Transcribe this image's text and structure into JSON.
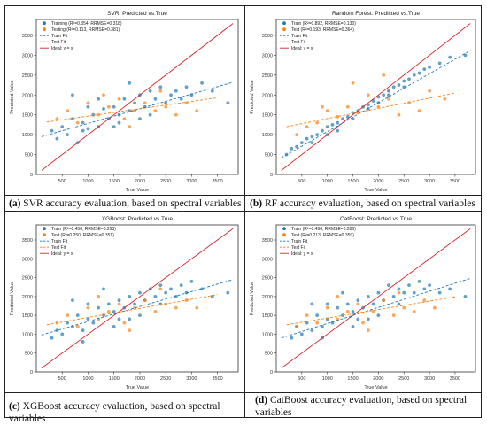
{
  "chart_data": [
    {
      "type": "scatter",
      "title": "SVR: Predicted vs.True",
      "xlabel": "True Value",
      "ylabel": "Predicted Value",
      "xlim": [
        0,
        3900
      ],
      "ylim": [
        0,
        3900
      ],
      "xticks": [
        "500",
        "1000",
        "1500",
        "2000",
        "2500",
        "3000",
        "3500"
      ],
      "yticks": [
        "0",
        "500",
        "1000",
        "1500",
        "2000",
        "2500",
        "3000",
        "3500"
      ],
      "legend_position": "top-left",
      "legend": [
        "Training (R²=0.354, RRMSE=0.318)",
        "Testing (R²=0.113, RRMSE=0.381)",
        "Train Fit",
        "Test Fit",
        "Ideal: y = x"
      ],
      "train_fit": [
        [
          100,
          950
        ],
        [
          3800,
          2320
        ]
      ],
      "test_fit": [
        [
          200,
          1320
        ],
        [
          3500,
          1930
        ]
      ],
      "ideal": [
        [
          100,
          100
        ],
        [
          3800,
          3800
        ]
      ],
      "train_points": [
        [
          300,
          1100
        ],
        [
          400,
          900
        ],
        [
          500,
          1200
        ],
        [
          600,
          1000
        ],
        [
          700,
          1400
        ],
        [
          800,
          800
        ],
        [
          900,
          1300
        ],
        [
          1000,
          1150
        ],
        [
          1100,
          1500
        ],
        [
          1200,
          1200
        ],
        [
          1300,
          1650
        ],
        [
          1400,
          1400
        ],
        [
          1500,
          1700
        ],
        [
          1600,
          1500
        ],
        [
          1700,
          1900
        ],
        [
          1800,
          1600
        ],
        [
          1900,
          1800
        ],
        [
          2000,
          2000
        ],
        [
          2100,
          1700
        ],
        [
          2200,
          2100
        ],
        [
          2300,
          1900
        ],
        [
          2400,
          2200
        ],
        [
          2500,
          1800
        ],
        [
          2600,
          2000
        ],
        [
          2700,
          2100
        ],
        [
          2800,
          1900
        ],
        [
          2900,
          2200
        ],
        [
          3000,
          2000
        ],
        [
          3200,
          2300
        ],
        [
          3400,
          2100
        ],
        [
          3700,
          1800
        ],
        [
          1000,
          1700
        ],
        [
          1500,
          1200
        ],
        [
          2000,
          1400
        ],
        [
          700,
          2000
        ],
        [
          1200,
          1900
        ],
        [
          1800,
          2300
        ],
        [
          2200,
          1500
        ],
        [
          900,
          1100
        ],
        [
          1600,
          1300
        ]
      ],
      "test_points": [
        [
          400,
          1400
        ],
        [
          600,
          1600
        ],
        [
          800,
          1300
        ],
        [
          1000,
          1800
        ],
        [
          1200,
          1500
        ],
        [
          1400,
          1700
        ],
        [
          1600,
          1900
        ],
        [
          1700,
          1400
        ],
        [
          1900,
          1600
        ],
        [
          2100,
          1800
        ],
        [
          2300,
          1600
        ],
        [
          2500,
          1700
        ],
        [
          2700,
          1500
        ],
        [
          2900,
          1800
        ],
        [
          3100,
          1600
        ],
        [
          1300,
          2000
        ],
        [
          1800,
          1200
        ],
        [
          2400,
          2100
        ]
      ]
    },
    {
      "type": "scatter",
      "title": "Random Forest: Predicted vs.True",
      "xlabel": "True Value",
      "ylabel": "Predicted Value",
      "xlim": [
        0,
        3900
      ],
      "ylim": [
        0,
        3900
      ],
      "xticks": [
        "500",
        "1000",
        "1500",
        "2000",
        "2500",
        "3000",
        "3500"
      ],
      "yticks": [
        "0",
        "500",
        "1000",
        "1500",
        "2000",
        "2500",
        "3000",
        "3500"
      ],
      "legend_position": "top-left",
      "legend": [
        "Train (R²=0.892, RRMSE=0.130)",
        "Test (R²=0.193, RRMSE=0.364)",
        "Train Fit",
        "Test Fit",
        "Ideal: y = x"
      ],
      "train_fit": [
        [
          100,
          420
        ],
        [
          3800,
          3120
        ]
      ],
      "test_fit": [
        [
          200,
          1200
        ],
        [
          3500,
          2050
        ]
      ],
      "ideal": [
        [
          100,
          100
        ],
        [
          3800,
          3800
        ]
      ],
      "train_points": [
        [
          200,
          500
        ],
        [
          300,
          650
        ],
        [
          400,
          700
        ],
        [
          500,
          800
        ],
        [
          600,
          900
        ],
        [
          700,
          950
        ],
        [
          800,
          1000
        ],
        [
          900,
          1100
        ],
        [
          1000,
          1200
        ],
        [
          1100,
          1250
        ],
        [
          1200,
          1300
        ],
        [
          1300,
          1400
        ],
        [
          1400,
          1450
        ],
        [
          1500,
          1550
        ],
        [
          1600,
          1600
        ],
        [
          1700,
          1700
        ],
        [
          1800,
          1750
        ],
        [
          1900,
          1850
        ],
        [
          2000,
          1950
        ],
        [
          2100,
          2000
        ],
        [
          2200,
          2100
        ],
        [
          2300,
          2200
        ],
        [
          2400,
          2250
        ],
        [
          2500,
          2350
        ],
        [
          2600,
          2400
        ],
        [
          2700,
          2500
        ],
        [
          2800,
          2550
        ],
        [
          2900,
          2650
        ],
        [
          3000,
          2700
        ],
        [
          3200,
          2800
        ],
        [
          3400,
          2950
        ],
        [
          3700,
          3000
        ],
        [
          1000,
          1000
        ],
        [
          1500,
          1400
        ],
        [
          2000,
          1800
        ],
        [
          2500,
          2200
        ],
        [
          1200,
          1100
        ],
        [
          1800,
          1650
        ],
        [
          2200,
          2000
        ],
        [
          700,
          800
        ]
      ],
      "test_points": [
        [
          400,
          1000
        ],
        [
          600,
          1200
        ],
        [
          800,
          1300
        ],
        [
          1000,
          1600
        ],
        [
          1200,
          1450
        ],
        [
          1400,
          1700
        ],
        [
          1600,
          1550
        ],
        [
          1800,
          2000
        ],
        [
          2000,
          1700
        ],
        [
          2200,
          1900
        ],
        [
          2400,
          1500
        ],
        [
          2600,
          1800
        ],
        [
          2800,
          1600
        ],
        [
          3000,
          2100
        ],
        [
          3300,
          1900
        ],
        [
          1500,
          2300
        ],
        [
          2100,
          2500
        ],
        [
          900,
          1700
        ]
      ]
    },
    {
      "type": "scatter",
      "title": "XGBoost: Predicted vs.True",
      "xlabel": "True Value",
      "ylabel": "Predicted Value",
      "xlim": [
        0,
        3900
      ],
      "ylim": [
        0,
        3900
      ],
      "xticks": [
        "500",
        "1000",
        "1500",
        "2000",
        "2500",
        "3000",
        "3500"
      ],
      "yticks": [
        "0",
        "500",
        "1000",
        "1500",
        "2000",
        "2500",
        "3000",
        "3500"
      ],
      "legend_position": "top-left",
      "legend": [
        "Train (R²=0.450, RRMSE=0.293)",
        "Test (R²=0.250, RRMSE=0.351)",
        "Train Fit",
        "Test Fit",
        "Ideal: y = x"
      ],
      "train_fit": [
        [
          100,
          980
        ],
        [
          3800,
          2450
        ]
      ],
      "test_fit": [
        [
          200,
          1250
        ],
        [
          3500,
          2050
        ]
      ],
      "ideal": [
        [
          100,
          100
        ],
        [
          3800,
          3800
        ]
      ],
      "train_points": [
        [
          300,
          900
        ],
        [
          400,
          1100
        ],
        [
          500,
          1000
        ],
        [
          600,
          1300
        ],
        [
          700,
          1200
        ],
        [
          800,
          1500
        ],
        [
          900,
          1100
        ],
        [
          1000,
          1400
        ],
        [
          1100,
          1300
        ],
        [
          1200,
          1700
        ],
        [
          1300,
          1500
        ],
        [
          1400,
          1800
        ],
        [
          1500,
          1600
        ],
        [
          1600,
          1900
        ],
        [
          1700,
          1700
        ],
        [
          1800,
          2000
        ],
        [
          1900,
          1800
        ],
        [
          2000,
          2100
        ],
        [
          2100,
          1900
        ],
        [
          2200,
          2200
        ],
        [
          2300,
          2000
        ],
        [
          2400,
          2300
        ],
        [
          2500,
          2100
        ],
        [
          2600,
          2200
        ],
        [
          2700,
          2000
        ],
        [
          2800,
          2300
        ],
        [
          2900,
          2100
        ],
        [
          3000,
          2400
        ],
        [
          3200,
          2200
        ],
        [
          3400,
          2000
        ],
        [
          3700,
          2100
        ],
        [
          1000,
          1800
        ],
        [
          1500,
          1200
        ],
        [
          2000,
          1500
        ],
        [
          700,
          1900
        ],
        [
          1300,
          2200
        ],
        [
          1800,
          1400
        ],
        [
          2400,
          1800
        ],
        [
          900,
          800
        ],
        [
          1600,
          1400
        ]
      ],
      "test_points": [
        [
          400,
          1300
        ],
        [
          600,
          1500
        ],
        [
          800,
          1200
        ],
        [
          1000,
          1700
        ],
        [
          1200,
          1400
        ],
        [
          1400,
          1600
        ],
        [
          1600,
          1800
        ],
        [
          1700,
          1300
        ],
        [
          1900,
          1700
        ],
        [
          2100,
          1900
        ],
        [
          2300,
          1600
        ],
        [
          2500,
          1800
        ],
        [
          2700,
          1700
        ],
        [
          2900,
          1900
        ],
        [
          3100,
          1700
        ],
        [
          1200,
          2000
        ],
        [
          1800,
          1100
        ],
        [
          2400,
          2200
        ]
      ]
    },
    {
      "type": "scatter",
      "title": "CatBoost: Predicted vs.True",
      "xlabel": "True Value",
      "ylabel": "Predicted Value",
      "xlim": [
        0,
        3900
      ],
      "ylim": [
        0,
        3900
      ],
      "xticks": [
        "500",
        "1000",
        "1500",
        "2000",
        "2500",
        "3000",
        "3500"
      ],
      "yticks": [
        "0",
        "500",
        "1000",
        "1500",
        "2000",
        "2500",
        "3000",
        "3500"
      ],
      "legend_position": "top-left",
      "legend": [
        "Train (R²=0.496, RRMSE=0.280)",
        "Test (R²=0.213, RRMSE=0.359)",
        "Train Fit",
        "Test Fit",
        "Ideal: y = x"
      ],
      "train_fit": [
        [
          100,
          900
        ],
        [
          3800,
          2480
        ]
      ],
      "test_fit": [
        [
          200,
          1250
        ],
        [
          3500,
          1990
        ]
      ],
      "ideal": [
        [
          100,
          100
        ],
        [
          3800,
          3800
        ]
      ],
      "train_points": [
        [
          300,
          900
        ],
        [
          400,
          1200
        ],
        [
          500,
          1000
        ],
        [
          600,
          1300
        ],
        [
          700,
          1100
        ],
        [
          800,
          1500
        ],
        [
          900,
          1200
        ],
        [
          1000,
          1400
        ],
        [
          1100,
          1300
        ],
        [
          1200,
          1700
        ],
        [
          1300,
          1500
        ],
        [
          1400,
          1800
        ],
        [
          1500,
          1600
        ],
        [
          1600,
          1900
        ],
        [
          1700,
          1700
        ],
        [
          1800,
          2000
        ],
        [
          1900,
          1800
        ],
        [
          2000,
          2100
        ],
        [
          2100,
          1900
        ],
        [
          2200,
          2300
        ],
        [
          2300,
          2000
        ],
        [
          2400,
          2200
        ],
        [
          2500,
          2100
        ],
        [
          2600,
          2300
        ],
        [
          2700,
          2100
        ],
        [
          2800,
          2400
        ],
        [
          2900,
          2200
        ],
        [
          3000,
          2300
        ],
        [
          3200,
          2100
        ],
        [
          3400,
          2200
        ],
        [
          3700,
          2000
        ],
        [
          1000,
          1800
        ],
        [
          1500,
          1200
        ],
        [
          2000,
          1500
        ],
        [
          700,
          1800
        ],
        [
          1300,
          2100
        ],
        [
          1800,
          1400
        ],
        [
          2400,
          1800
        ],
        [
          900,
          900
        ],
        [
          1600,
          1400
        ]
      ],
      "test_points": [
        [
          400,
          1200
        ],
        [
          600,
          1500
        ],
        [
          800,
          1300
        ],
        [
          1000,
          1700
        ],
        [
          1200,
          1400
        ],
        [
          1400,
          1600
        ],
        [
          1600,
          1800
        ],
        [
          1700,
          1300
        ],
        [
          1900,
          1600
        ],
        [
          2100,
          1900
        ],
        [
          2300,
          1500
        ],
        [
          2500,
          1700
        ],
        [
          2700,
          1600
        ],
        [
          2900,
          1900
        ],
        [
          3100,
          1700
        ],
        [
          1200,
          2000
        ],
        [
          1800,
          1100
        ],
        [
          2400,
          2100
        ]
      ]
    }
  ],
  "captions": [
    {
      "label": "(a)",
      "text": " SVR accuracy evaluation, based on spectral variables"
    },
    {
      "label": "(b)",
      "text": " RF accuracy evaluation, based on spectral variables"
    },
    {
      "label": "(c)",
      "text": " XGBoost accuracy evaluation, based on spectral variables"
    },
    {
      "label": "(d)",
      "text": " CatBoost accuracy evaluation, based on spectral variables"
    }
  ],
  "colors": {
    "train": "#1f77b4",
    "test": "#ff7f0e",
    "ideal": "#d62728",
    "axis": "#333333"
  }
}
